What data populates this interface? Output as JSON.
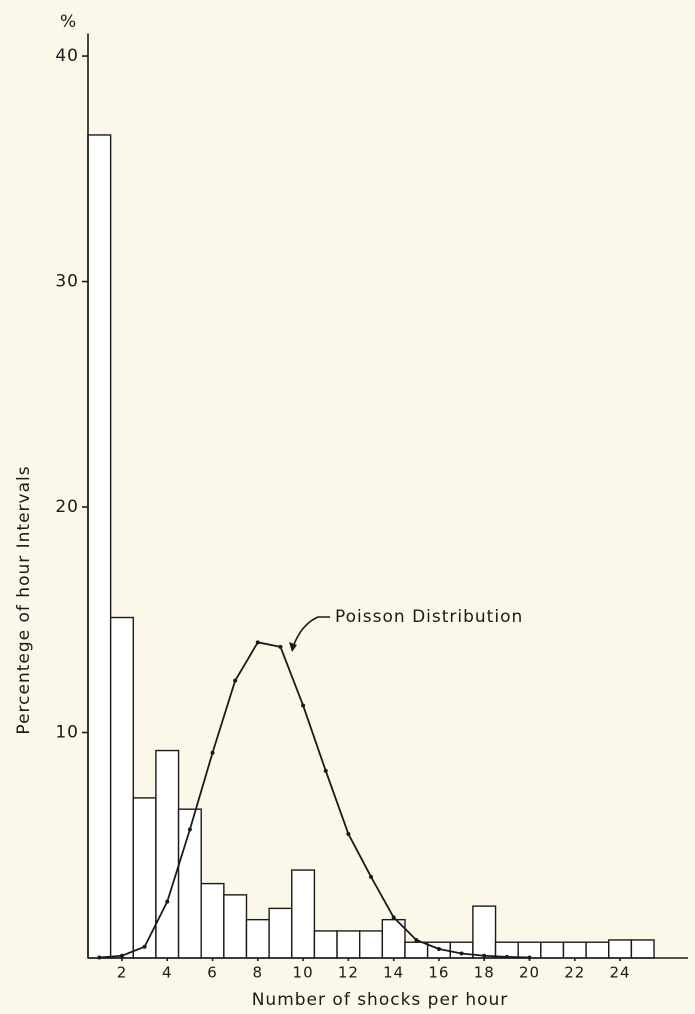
{
  "chart_data": {
    "type": "histogram",
    "unit": "%",
    "x_label": "Number of shocks per hour",
    "y_label": "Percentege of hour Intervals",
    "bins": [
      0.5,
      1.5,
      2.5,
      3.5,
      4.5,
      5.5,
      6.5,
      7.5,
      8.5,
      9.5,
      10.5,
      11.5,
      12.5,
      13.5,
      14.5,
      15.5,
      16.5,
      17.5,
      18.5,
      19.5,
      20.5,
      21.5,
      22.5,
      23.5,
      24.5,
      25.5
    ],
    "values": [
      36.5,
      15.1,
      7.1,
      9.2,
      6.6,
      3.3,
      2.8,
      1.7,
      2.2,
      3.9,
      1.2,
      1.2,
      1.2,
      1.7,
      0.7,
      0.7,
      0.7,
      2.3,
      0.7,
      0.7,
      0.7,
      0.7,
      0.7,
      0.8,
      0.8
    ],
    "color": "#ffffff",
    "curve": {
      "name": "Poisson Distribution",
      "color": "#1a1a1a",
      "x": [
        1,
        2,
        3,
        4,
        5,
        6,
        7,
        8,
        9,
        10,
        11,
        12,
        13,
        14,
        15,
        16,
        17,
        18,
        19,
        20
      ],
      "values": [
        0.02,
        0.1,
        0.5,
        2.5,
        5.7,
        9.1,
        12.3,
        14.0,
        13.8,
        11.2,
        8.3,
        5.5,
        3.6,
        1.8,
        0.8,
        0.4,
        0.2,
        0.1,
        0.05,
        0.02
      ]
    },
    "xlim": [
      0.5,
      27
    ],
    "ylim": [
      0,
      41
    ],
    "xticks": [
      2,
      4,
      6,
      8,
      10,
      12,
      14,
      16,
      18,
      20,
      22,
      24
    ],
    "yticks": [
      10,
      20,
      30,
      40
    ]
  }
}
